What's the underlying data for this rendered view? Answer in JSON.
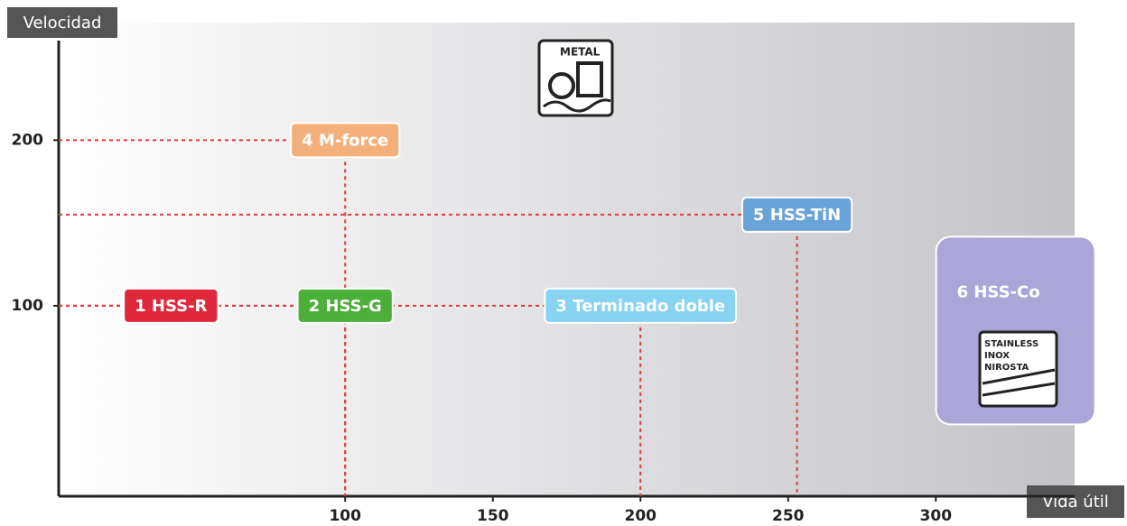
{
  "chart_data": {
    "type": "positioning",
    "ylabel": "Velocidad",
    "xlabel": "Vida útil",
    "xlim": [
      3,
      347
    ],
    "ylim": [
      -15,
      271
    ],
    "xticks": [
      100,
      150,
      200,
      250,
      300
    ],
    "yticks": [
      100,
      200
    ],
    "guide_color": "#e03a3a",
    "points": [
      {
        "label": "1  HSS-R",
        "color": "#e0283c",
        "x": 41,
        "y": 100,
        "drop_line": false
      },
      {
        "label": "2  HSS-G",
        "color": "#4caf3a",
        "x": 100,
        "y": 100,
        "drop_line": true
      },
      {
        "label": "3 Terminado doble",
        "color": "#86d3f2",
        "x": 200,
        "y": 100,
        "drop_line": true
      },
      {
        "label": "4  M-force",
        "color": "#f4b07a",
        "x": 100,
        "y": 200,
        "drop_line": true
      },
      {
        "label": "5   HSS-TiN",
        "color": "#6aa3d8",
        "x": 253,
        "y": 155,
        "drop_line": true
      },
      {
        "label": "6  HSS-Co",
        "color": "#aaa6d8",
        "x": 327,
        "y": 85,
        "region": true
      }
    ],
    "annotations": [
      "METAL",
      "STAINLESS",
      "INOX",
      "NIROSTA"
    ]
  }
}
